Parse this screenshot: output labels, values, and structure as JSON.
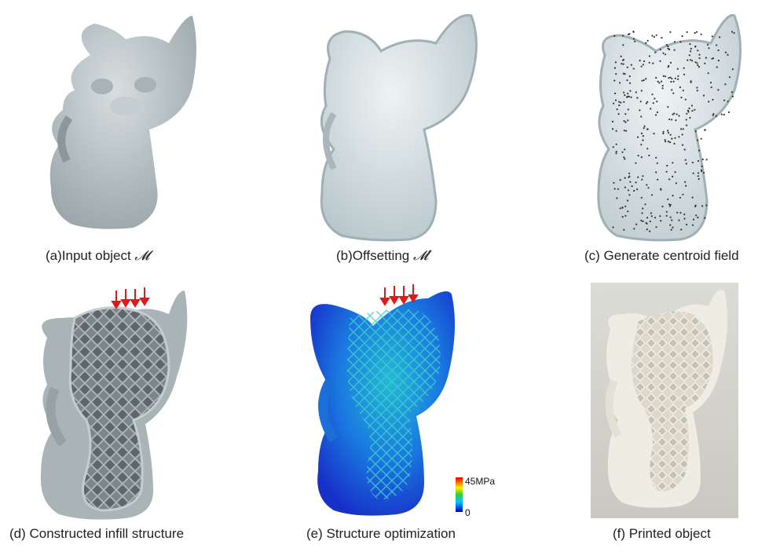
{
  "figure": {
    "panels": [
      {
        "id": "a",
        "caption_prefix": "(a)Input object ",
        "symbol": "𝓜"
      },
      {
        "id": "b",
        "caption_prefix": "(b)Offsetting ",
        "symbol": "𝓜′"
      },
      {
        "id": "c",
        "caption_prefix": "(c) Generate centroid field",
        "symbol": ""
      },
      {
        "id": "d",
        "caption_prefix": "(d) Constructed infill structure",
        "symbol": ""
      },
      {
        "id": "e",
        "caption_prefix": "(e) Structure optimization",
        "symbol": ""
      },
      {
        "id": "f",
        "caption_prefix": "(f) Printed object",
        "symbol": ""
      }
    ],
    "stress_legend": {
      "max_label": "45MPa",
      "min_label": "0"
    },
    "colors": {
      "mesh": "#b9c3c6",
      "offset": "#c9d7dc",
      "load_arrow": "#e0191a",
      "photo_bg": "#d9d8d3"
    }
  }
}
